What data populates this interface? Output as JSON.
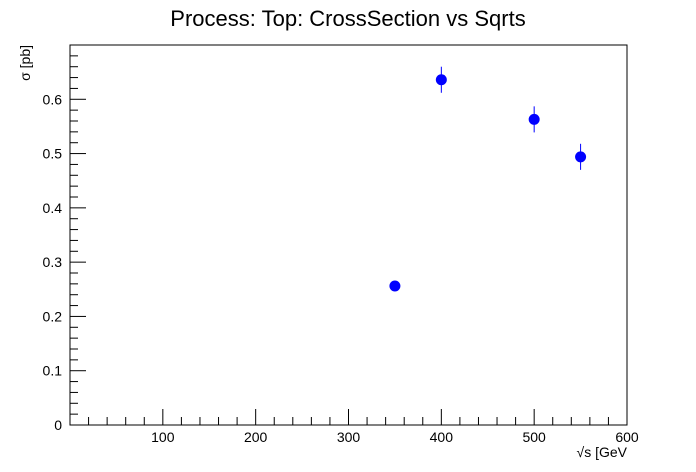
{
  "chart_data": {
    "type": "scatter",
    "title": "Process: Top: CrossSection vs Sqrts",
    "xlabel": "√s [GeV",
    "ylabel": "σ [pb]",
    "xlim": [
      0,
      600
    ],
    "ylim": [
      0,
      0.7
    ],
    "x_ticks": [
      100,
      200,
      300,
      400,
      500,
      600
    ],
    "y_ticks": [
      0,
      0.1,
      0.2,
      0.3,
      0.4,
      0.5,
      0.6
    ],
    "x_tick_labels": [
      "100",
      "200",
      "300",
      "400",
      "500",
      "600"
    ],
    "y_tick_labels": [
      "0",
      "0.1",
      "0.2",
      "0.3",
      "0.4",
      "0.5",
      "0.6"
    ],
    "grid": false,
    "marker_color": "#0000ff",
    "points": [
      {
        "x": 350,
        "y": 0.256,
        "err": 0.005
      },
      {
        "x": 400,
        "y": 0.636,
        "err": 0.024
      },
      {
        "x": 500,
        "y": 0.563,
        "err": 0.024
      },
      {
        "x": 550,
        "y": 0.494,
        "err": 0.024
      }
    ]
  }
}
